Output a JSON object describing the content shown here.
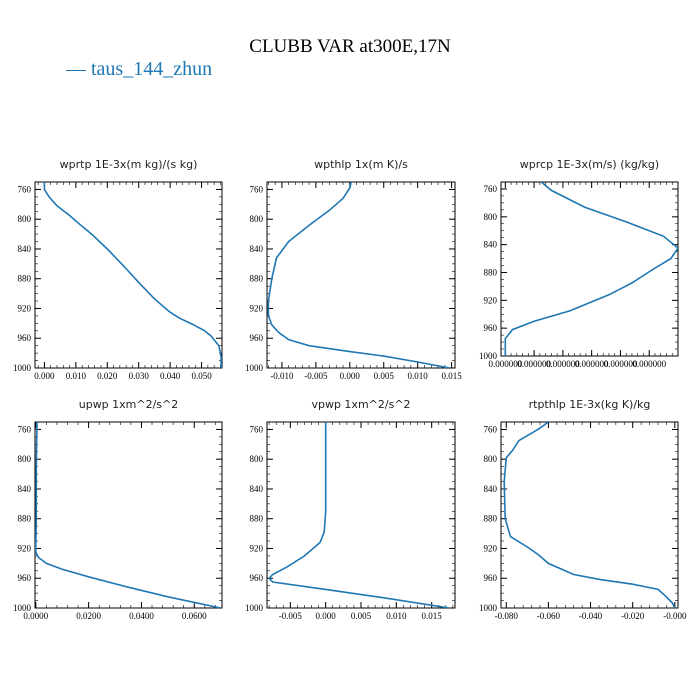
{
  "figure": {
    "title": "CLUBB VAR at300E,17N",
    "legend": [
      {
        "name": "taus_144_zhun",
        "color": "#1f77b4"
      }
    ],
    "line_color": "#1f77b4"
  },
  "chart_data": [
    {
      "type": "line",
      "title": "wprtp  1E-3x(m kg)/(s kg)",
      "xlim": [
        -0.003,
        0.0565
      ],
      "ylim": [
        1000,
        750
      ],
      "yticks": [
        760,
        800,
        840,
        880,
        920,
        960,
        1000
      ],
      "xticks": [
        0.0,
        0.01,
        0.02,
        0.03,
        0.04,
        0.05
      ],
      "xtick_labels": [
        "0.000",
        "0.010",
        "0.020",
        "0.030",
        "0.040",
        "0.050"
      ],
      "series": [
        {
          "x": [
            0.0,
            0.0,
            0.0015,
            0.004,
            0.008,
            0.011,
            0.015,
            0.02,
            0.025,
            0.03,
            0.035,
            0.04,
            0.043,
            0.047,
            0.051,
            0.053,
            0.0555,
            0.0562,
            0.0562
          ],
          "y": [
            750,
            760,
            770,
            782,
            795,
            806,
            820,
            840,
            862,
            885,
            907,
            925,
            933,
            941,
            950,
            957,
            970,
            985,
            1000
          ]
        }
      ]
    },
    {
      "type": "line",
      "title": "wpthlp  1x(m K)/s",
      "xlim": [
        -0.0122,
        0.0155
      ],
      "ylim": [
        1000,
        750
      ],
      "yticks": [
        760,
        800,
        840,
        880,
        920,
        960,
        1000
      ],
      "xticks": [
        -0.01,
        -0.005,
        0.0,
        0.005,
        0.01,
        0.015
      ],
      "xtick_labels": [
        "-0.010",
        "-0.005",
        "0.000",
        "0.005",
        "0.010",
        "0.015"
      ],
      "series": [
        {
          "x": [
            0.0002,
            0.0,
            -0.001,
            -0.003,
            -0.006,
            -0.009,
            -0.0108,
            -0.0115,
            -0.012,
            -0.012,
            -0.0115,
            -0.0105,
            -0.009,
            -0.006,
            0.0,
            0.005,
            0.01,
            0.0147
          ],
          "y": [
            750,
            758,
            772,
            788,
            808,
            830,
            852,
            880,
            910,
            930,
            942,
            952,
            962,
            970,
            978,
            984,
            992,
            1000
          ]
        }
      ]
    },
    {
      "type": "line",
      "title": "wprcp  1E-3x(m/s) (kg/kg)",
      "xlim": [
        -3e-08,
        1.2e-06
      ],
      "ylim": [
        1000,
        750
      ],
      "yticks": [
        760,
        800,
        840,
        880,
        920,
        960,
        1000
      ],
      "xticks": [
        0.0,
        2e-07,
        4e-07,
        6e-07,
        8e-07,
        1e-06
      ],
      "xtick_labels": [
        "0.000000",
        "0.000000",
        "0.000000",
        "0.000000",
        "0.000000",
        "0.000000"
      ],
      "series": [
        {
          "x": [
            2.5e-07,
            3.2e-07,
            5.5e-07,
            8.5e-07,
            1.1e-06,
            1.2e-06,
            1.15e-06,
            1.03e-06,
            8.8e-07,
            7.2e-07,
            4.5e-07,
            2e-07,
            5e-08,
            0.0,
            0.0
          ],
          "y": [
            750,
            762,
            786,
            808,
            828,
            845,
            860,
            875,
            895,
            912,
            935,
            950,
            962,
            975,
            1000
          ]
        }
      ]
    },
    {
      "type": "line",
      "title": "upwp  1xm^2/s^2",
      "xlim": [
        -0.0003,
        0.0705
      ],
      "ylim": [
        1000,
        750
      ],
      "yticks": [
        760,
        800,
        840,
        880,
        920,
        960,
        1000
      ],
      "xticks": [
        0.0,
        0.02,
        0.04,
        0.06
      ],
      "xtick_labels": [
        "0.0000",
        "0.0200",
        "0.0400",
        "0.0600"
      ],
      "series": [
        {
          "x": [
            0.0005,
            0.0003,
            0.0002,
            0.0002,
            0.0,
            0.0,
            0.001,
            0.004,
            0.01,
            0.02,
            0.035,
            0.05,
            0.07
          ],
          "y": [
            750,
            780,
            820,
            880,
            915,
            925,
            932,
            940,
            948,
            958,
            972,
            985,
            1000
          ]
        }
      ]
    },
    {
      "type": "line",
      "title": "vpwp  1xm^2/s^2",
      "xlim": [
        -0.0083,
        0.0183
      ],
      "ylim": [
        1000,
        750
      ],
      "yticks": [
        760,
        800,
        840,
        880,
        920,
        960,
        1000
      ],
      "xticks": [
        -0.005,
        0.0,
        0.005,
        0.01,
        0.015
      ],
      "xtick_labels": [
        "-0.005",
        "0.000",
        "0.005",
        "0.010",
        "0.015"
      ],
      "series": [
        {
          "x": [
            0.0,
            0.0,
            0.0,
            -0.0002,
            -0.0008,
            -0.003,
            -0.0055,
            -0.0075,
            -0.008,
            -0.0075,
            0.0,
            0.008,
            0.0175
          ],
          "y": [
            750,
            820,
            870,
            898,
            912,
            930,
            945,
            955,
            960,
            965,
            975,
            986,
            1000
          ]
        }
      ]
    },
    {
      "type": "line",
      "title": "rtpthlp  1E-3x(kg K)/kg",
      "xlim": [
        -0.0825,
        0.0015
      ],
      "ylim": [
        1000,
        750
      ],
      "yticks": [
        760,
        800,
        840,
        880,
        920,
        960,
        1000
      ],
      "xticks": [
        -0.08,
        -0.06,
        -0.04,
        -0.02,
        0.0
      ],
      "xtick_labels": [
        "-0.080",
        "-0.060",
        "-0.040",
        "-0.020",
        "-0.000"
      ],
      "series": [
        {
          "x": [
            -0.06,
            -0.065,
            -0.074,
            -0.077,
            -0.08,
            -0.081,
            -0.0805,
            -0.078,
            -0.07,
            -0.065,
            -0.06,
            -0.048,
            -0.035,
            -0.02,
            -0.008,
            -0.004,
            -0.001,
            0.0
          ],
          "y": [
            750,
            760,
            775,
            788,
            798,
            830,
            880,
            904,
            918,
            928,
            940,
            955,
            962,
            968,
            975,
            985,
            994,
            1000
          ]
        }
      ]
    }
  ]
}
